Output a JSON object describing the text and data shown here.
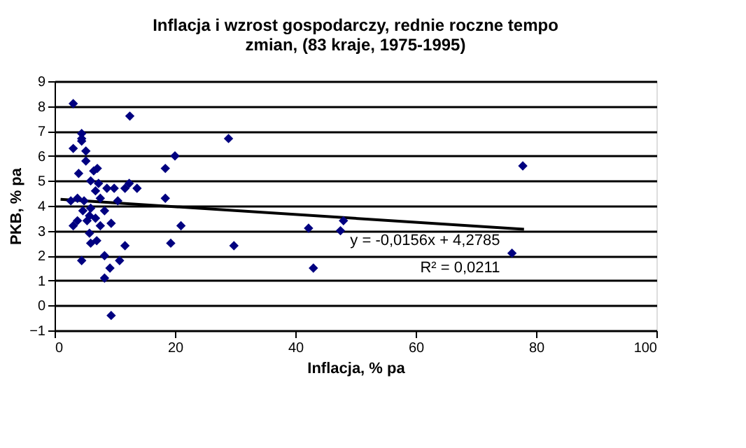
{
  "chart_data": {
    "type": "scatter",
    "title": [
      "Inflacja i wzrost gospodarczy,   rednie roczne tempo",
      "zmian, (83 kraje, 1975-1995)"
    ],
    "xlabel": "Inflacja, % pa",
    "ylabel": "PKB, % pa",
    "xlim": [
      0,
      100
    ],
    "xticks": [
      0,
      20,
      40,
      60,
      80,
      100
    ],
    "ylim": [
      -1,
      9
    ],
    "yticks": [
      -1,
      0,
      1,
      2,
      3,
      4,
      5,
      6,
      7,
      8,
      9
    ],
    "grid": "y",
    "series": [
      {
        "color": "#000080",
        "marker": "diamond",
        "x": [
          3.1,
          12.5,
          28.9,
          77.8,
          4.5,
          4.5,
          4.5,
          3.1,
          5.2,
          5.2,
          4,
          20,
          18.4,
          18.4,
          21,
          19.3,
          11.7,
          10.8,
          9.2,
          8.3,
          8.3,
          4.5,
          9.4,
          6,
          7,
          5.8,
          9.4,
          7.6,
          3.1,
          3.8,
          5.8,
          2.7,
          3.8,
          10.5,
          11.7,
          12.4,
          13.7,
          9.9,
          8.7,
          7.1,
          6.5,
          6,
          7.3,
          6.8,
          7.6,
          6,
          4.7,
          4.9,
          8.3,
          6.8,
          5.4,
          29.8,
          42.2,
          43,
          47.5,
          48,
          76
        ],
        "values": [
          8.1,
          7.6,
          6.7,
          5.6,
          6.9,
          6.7,
          6.6,
          6.3,
          6.2,
          5.8,
          5.3,
          6.0,
          5.5,
          4.3,
          3.2,
          2.5,
          2.4,
          1.8,
          1.5,
          1.1,
          2.0,
          1.8,
          -0.4,
          2.5,
          2.6,
          2.9,
          3.3,
          3.2,
          3.2,
          3.4,
          3.6,
          4.2,
          4.3,
          4.2,
          4.7,
          4.9,
          4.7,
          4.7,
          4.7,
          5.5,
          5.4,
          5.0,
          4.9,
          4.6,
          4.3,
          3.9,
          3.8,
          4.2,
          3.8,
          3.5,
          3.4,
          2.4,
          3.1,
          1.5,
          3.0,
          3.4,
          2.1
        ]
      },
      {
        "type": "line",
        "color": "#000000",
        "x": [
          1,
          78
        ],
        "values": [
          4.26,
          3.06
        ]
      }
    ],
    "annotations": [
      "y = -0,0156x + 4,2785",
      "R² = 0,0211"
    ]
  }
}
